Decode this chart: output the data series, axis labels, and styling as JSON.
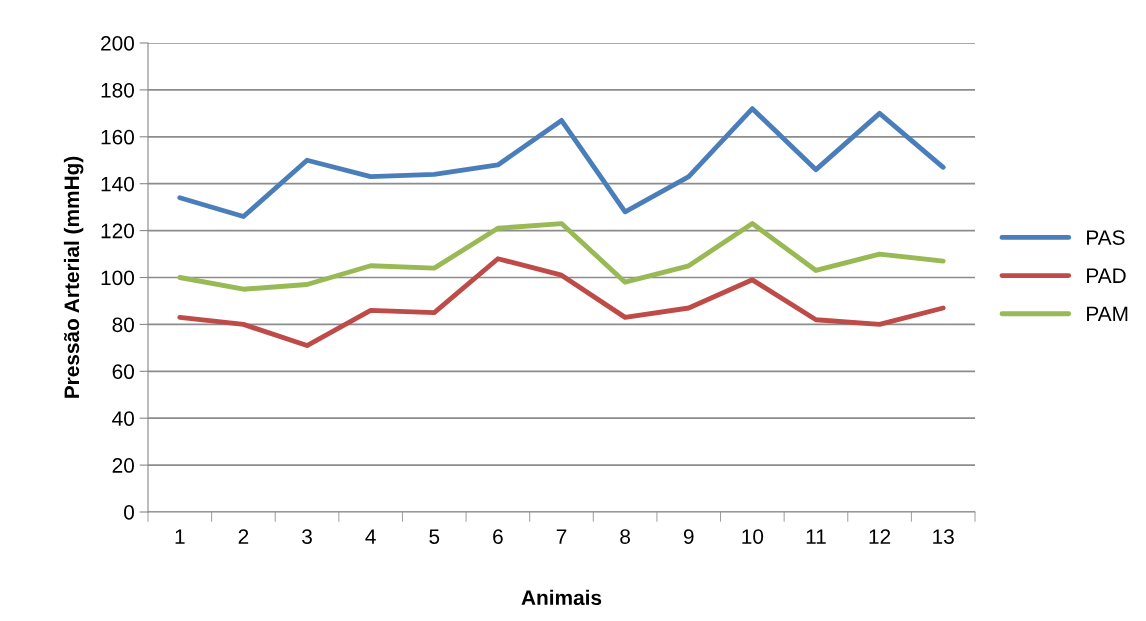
{
  "chart_data": {
    "type": "line",
    "xlabel": "Animais",
    "ylabel": "Pressão Arterial (mmHg)",
    "categories": [
      "1",
      "2",
      "3",
      "4",
      "5",
      "6",
      "7",
      "8",
      "9",
      "10",
      "11",
      "12",
      "13"
    ],
    "series": [
      {
        "name": "PAS",
        "color": "#4a7ebb",
        "values": [
          134,
          126,
          150,
          143,
          144,
          148,
          167,
          128,
          143,
          172,
          146,
          170,
          147
        ]
      },
      {
        "name": "PAD",
        "color": "#be4b48",
        "values": [
          83,
          80,
          71,
          86,
          85,
          108,
          101,
          83,
          87,
          99,
          82,
          80,
          87
        ]
      },
      {
        "name": "PAM",
        "color": "#98b954",
        "values": [
          100,
          95,
          97,
          105,
          104,
          121,
          123,
          98,
          105,
          123,
          103,
          110,
          107
        ]
      }
    ],
    "ylim": [
      0,
      200
    ],
    "yticks": [
      0,
      20,
      40,
      60,
      80,
      100,
      120,
      140,
      160,
      180,
      200
    ],
    "grid": "y",
    "legend": "right",
    "line_style": "solid",
    "marker": "none"
  }
}
